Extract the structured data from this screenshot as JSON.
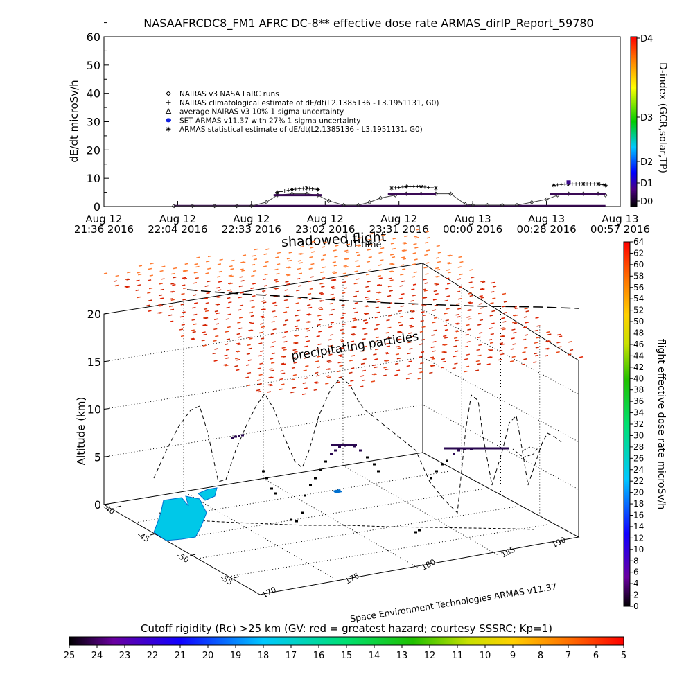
{
  "chart_data": [
    {
      "type": "line",
      "title": "NASAAFRCDC8_FM1 AFRC DC-8** effective dose rate ARMAS_dirIP_Report_59780",
      "xlabel": "UT time",
      "ylabel": "dE/dt microSv/h",
      "ylim": [
        0,
        60
      ],
      "yticks": [
        "0",
        "10",
        "20",
        "30",
        "40",
        "50",
        "60"
      ],
      "xticks": [
        {
          "l1": "Aug 12",
          "l2": "21:36 2016"
        },
        {
          "l1": "Aug 12",
          "l2": "22:04 2016"
        },
        {
          "l1": "Aug 12",
          "l2": "22:33 2016"
        },
        {
          "l1": "Aug 12",
          "l2": "23:02 2016"
        },
        {
          "l1": "Aug 12",
          "l2": "23:31 2016"
        },
        {
          "l1": "Aug 13",
          "l2": "00:00 2016"
        },
        {
          "l1": "Aug 13",
          "l2": "00:28 2016"
        },
        {
          "l1": "Aug 13",
          "l2": "00:57 2016"
        }
      ],
      "xlim": [
        0,
        7
      ],
      "legend_position": "upper-left",
      "legend": [
        {
          "symbol": "diamond",
          "label": "NAIRAS v3 NASA LaRC runs"
        },
        {
          "symbol": "plus",
          "label": "NAIRAS climatological estimate of dE/dt(L2.1385136 - L3.1951131, G0)"
        },
        {
          "symbol": "triangle",
          "label": "average NAIRAS v3 10% 1-sigma uncertainty"
        },
        {
          "symbol": "blue-dot",
          "label": "SET ARMAS v11.37 with 27% 1-sigma uncertainty"
        },
        {
          "symbol": "asterisk",
          "label": "ARMAS statistical estimate of dE/dt(L2.1385136 - L3.1951131, G0)"
        }
      ],
      "annotation": "shadowed flight",
      "series": [
        {
          "name": "NAIRAS v3 NASA LaRC runs",
          "x": [
            0.95,
            1.2,
            1.5,
            1.8,
            2.0,
            2.2,
            2.35,
            2.55,
            2.75,
            2.9,
            3.05,
            3.25,
            3.45,
            3.6,
            3.75,
            3.95,
            4.1,
            4.3,
            4.5,
            4.7,
            4.9,
            5.0,
            5.2,
            5.4,
            5.6,
            5.8,
            6.0,
            6.15,
            6.3,
            6.5,
            6.7,
            6.8
          ],
          "y": [
            0.2,
            0.2,
            0.2,
            0.2,
            0.2,
            1.5,
            4.0,
            4.5,
            4.5,
            4.0,
            2.0,
            0.5,
            0.5,
            1.5,
            3.0,
            4.0,
            4.5,
            4.5,
            4.5,
            4.5,
            0.8,
            0.5,
            0.5,
            0.5,
            0.5,
            1.5,
            2.5,
            4.0,
            4.5,
            4.5,
            4.5,
            4.0
          ]
        },
        {
          "name": "ARMAS statistical estimate of dE/dt(L2.1385136 - L3.1951131, G0)",
          "x": [
            2.35,
            2.55,
            2.75,
            2.9,
            3.9,
            4.1,
            4.3,
            4.5,
            6.1,
            6.3,
            6.5,
            6.7,
            6.8
          ],
          "y": [
            5.0,
            6.0,
            6.5,
            6.0,
            6.5,
            7.0,
            7.0,
            6.5,
            7.5,
            8.0,
            8.0,
            8.0,
            7.5
          ]
        }
      ],
      "colorbar": {
        "label": "D-index (GCR,solar,TP)",
        "ticks": [
          "D0",
          "D1",
          "D2",
          "D3",
          "D4"
        ]
      }
    },
    {
      "type": "scatter",
      "zlabel": "Altitude (km)",
      "zticks": [
        "0",
        "5",
        "10",
        "15",
        "20"
      ],
      "lat_ticks": [
        "-40",
        "-45",
        "-50",
        "-55"
      ],
      "lon_ticks": [
        "170",
        "175",
        "180",
        "185",
        "190"
      ],
      "annotations": [
        "precipitating particles",
        "Space Environment Technologies ARMAS v11.37"
      ],
      "colorbar": {
        "label": "flight effective dose rate microSv/h",
        "ticks": [
          "0",
          "2",
          "4",
          "6",
          "8",
          "10",
          "12",
          "14",
          "16",
          "18",
          "20",
          "22",
          "24",
          "26",
          "28",
          "30",
          "32",
          "34",
          "36",
          "38",
          "40",
          "42",
          "44",
          "46",
          "48",
          "50",
          "52",
          "54",
          "56",
          "58",
          "60",
          "62",
          "64"
        ]
      }
    }
  ],
  "bottom_colorbar": {
    "label": "Cutoff rigidity (Rc) >25 km (GV: red = greatest hazard; courtesy SSSRC; Kp=1)",
    "ticks": [
      "25",
      "24",
      "23",
      "22",
      "21",
      "20",
      "19",
      "18",
      "17",
      "16",
      "15",
      "14",
      "13",
      "12",
      "11",
      "10",
      "9",
      "8",
      "7",
      "6",
      "5"
    ]
  }
}
